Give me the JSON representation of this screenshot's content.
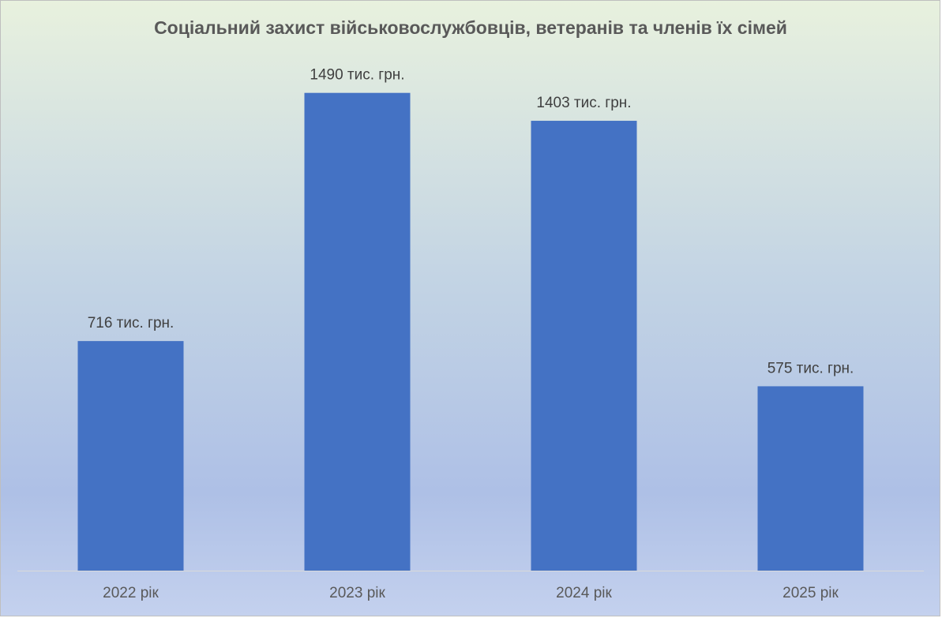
{
  "chart_data": {
    "type": "bar",
    "title": "Соціальний захист військовослужбовців, ветеранів та членів їх сімей",
    "categories": [
      "2022 рік",
      "2023 рік",
      "2024 рік",
      "2025 рік"
    ],
    "values": [
      716,
      1490,
      1403,
      575
    ],
    "value_labels": [
      "716 тис. грн.",
      "1490 тис. грн.",
      "1403 тис. грн.",
      "575 тис. грн."
    ],
    "color": "#4472c4",
    "ylim": [
      0,
      1600
    ]
  }
}
